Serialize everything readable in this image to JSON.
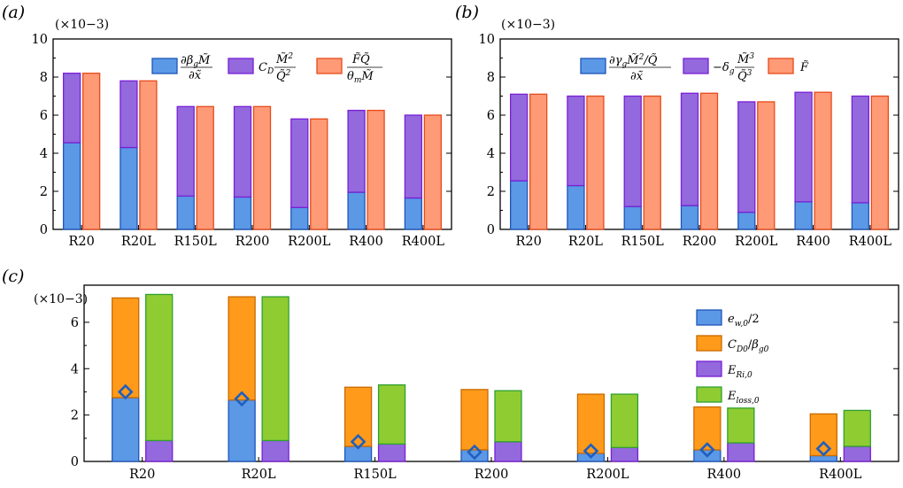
{
  "colors": {
    "blue_fill": "#5b98e6",
    "blue_edge": "#1f56b8",
    "purple_fill": "#9369dd",
    "purple_edge": "#7a1fd6",
    "salmon_fill": "#ff9a76",
    "salmon_edge": "#e64a1a",
    "orange_fill": "#ff9a1a",
    "orange_edge": "#c86a00",
    "green_fill": "#8fcc32",
    "green_edge": "#2fa02f",
    "diamond_edge": "#1f5fbf"
  },
  "chart_data": [
    {
      "panel_label": "(a)",
      "type": "bar",
      "stacked": true,
      "scale_label": "(×10−3)",
      "categories": [
        "R20",
        "R20L",
        "R150L",
        "R200",
        "R200L",
        "R400",
        "R400L"
      ],
      "ylim": [
        0,
        10
      ],
      "yticks": [
        "0",
        "2",
        "4",
        "6",
        "8",
        "10"
      ],
      "legend_position": "top-right",
      "legend": [
        "∂β_g M̃ / ∂x̃",
        "C_D M̃² / Q̃²",
        "F̃Q̃ / θ_m M̃"
      ],
      "bars": [
        {
          "name": "∂β_g M̃ / ∂x̃",
          "stack": "left",
          "values": [
            4.55,
            4.3,
            1.75,
            1.7,
            1.15,
            1.95,
            1.65
          ]
        },
        {
          "name": "C_D M̃² / Q̃²",
          "stack": "left",
          "values": [
            3.65,
            3.5,
            4.7,
            4.75,
            4.65,
            4.3,
            4.35
          ]
        },
        {
          "name": "F̃Q̃ / θ_m M̃",
          "stack": "right",
          "values": [
            8.2,
            7.8,
            6.45,
            6.45,
            5.8,
            6.25,
            6.0
          ]
        }
      ]
    },
    {
      "panel_label": "(b)",
      "type": "bar",
      "stacked": true,
      "scale_label": "(×10−3)",
      "categories": [
        "R20",
        "R20L",
        "R150L",
        "R200",
        "R200L",
        "R400",
        "R400L"
      ],
      "ylim": [
        0,
        10
      ],
      "yticks": [
        "0",
        "2",
        "4",
        "6",
        "8",
        "10"
      ],
      "legend_position": "top-right",
      "legend": [
        "∂γ_g M̃²/Q̃ / ∂x̃",
        "−δ_g M̃³ / Q̃³",
        "F̃"
      ],
      "bars": [
        {
          "name": "∂γ_g M̃²/Q̃ / ∂x̃",
          "stack": "left",
          "values": [
            2.55,
            2.3,
            1.2,
            1.25,
            0.9,
            1.45,
            1.4
          ]
        },
        {
          "name": "−δ_g M̃³ / Q̃³",
          "stack": "left",
          "values": [
            4.55,
            4.7,
            5.8,
            5.9,
            5.8,
            5.75,
            5.6
          ]
        },
        {
          "name": "F̃",
          "stack": "right",
          "values": [
            7.1,
            7.0,
            7.0,
            7.15,
            6.7,
            7.2,
            7.0
          ]
        }
      ]
    },
    {
      "panel_label": "(c)",
      "type": "bar",
      "stacked": true,
      "scale_label": "(×10−3)",
      "categories": [
        "R20",
        "R20L",
        "R150L",
        "R200",
        "R200L",
        "R400",
        "R400L"
      ],
      "ylim": [
        0,
        7.6
      ],
      "yticks": [
        "0",
        "2",
        "4",
        "6"
      ],
      "legend_position": "right",
      "legend": [
        "e_w,0/2",
        "C_D0/β_g0",
        "E_Ri,0",
        "E_loss,0"
      ],
      "bars": [
        {
          "name": "e_w,0/2",
          "stack": "left",
          "values": [
            2.75,
            2.65,
            0.65,
            0.5,
            0.35,
            0.5,
            0.25
          ]
        },
        {
          "name": "C_D0/β_g0",
          "stack": "left",
          "values": [
            4.3,
            4.45,
            2.55,
            2.6,
            2.55,
            1.85,
            1.8
          ]
        },
        {
          "name": "E_Ri,0",
          "stack": "right",
          "values": [
            0.9,
            0.9,
            0.75,
            0.85,
            0.6,
            0.8,
            0.65
          ]
        },
        {
          "name": "E_loss,0",
          "stack": "right",
          "values": [
            6.3,
            6.2,
            2.55,
            2.2,
            2.3,
            1.5,
            1.55
          ]
        }
      ],
      "markers": {
        "shape": "diamond",
        "values": [
          3.0,
          2.7,
          0.85,
          0.4,
          0.45,
          0.5,
          0.55
        ]
      }
    }
  ]
}
